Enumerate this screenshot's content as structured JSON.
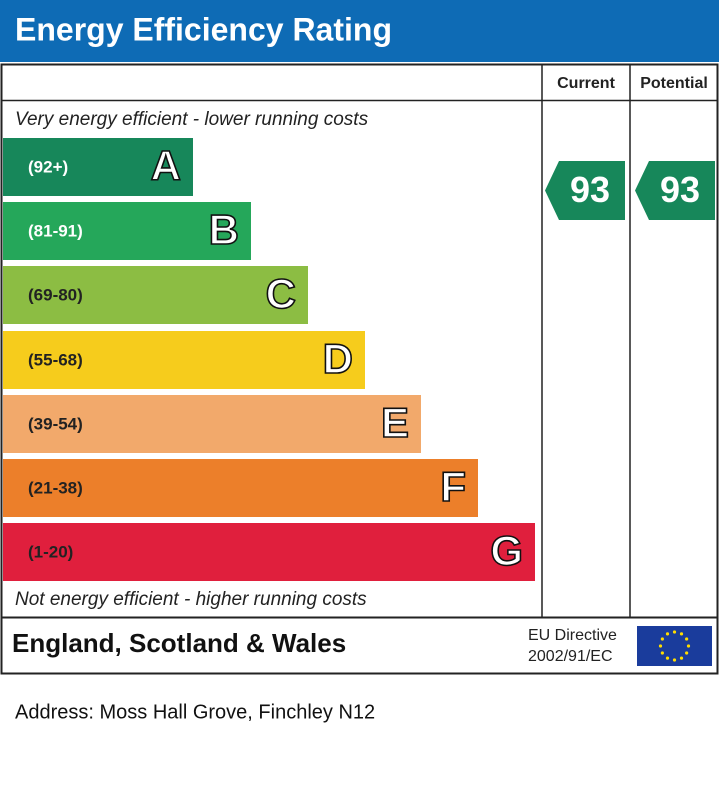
{
  "header": {
    "title": "Energy Efficiency Rating"
  },
  "columns": {
    "current": "Current",
    "potential": "Potential"
  },
  "top_note": "Very energy efficient - lower running costs",
  "bottom_note": "Not energy efficient - higher running costs",
  "bands": [
    {
      "range": "(92+)",
      "letter": "A",
      "color": "#17875a",
      "text_color": "#ffffff"
    },
    {
      "range": "(81-91)",
      "letter": "B",
      "color": "#25a75a",
      "text_color": "#ffffff"
    },
    {
      "range": "(69-80)",
      "letter": "C",
      "color": "#8cbd43",
      "text_color": "#222222"
    },
    {
      "range": "(55-68)",
      "letter": "D",
      "color": "#f6cc1c",
      "text_color": "#222222"
    },
    {
      "range": "(39-54)",
      "letter": "E",
      "color": "#f2a96b",
      "text_color": "#222222"
    },
    {
      "range": "(21-38)",
      "letter": "F",
      "color": "#ec7f2a",
      "text_color": "#222222"
    },
    {
      "range": "(1-20)",
      "letter": "G",
      "color": "#e01f3d",
      "text_color": "#222222"
    }
  ],
  "ratings": {
    "current": 93,
    "potential": 93,
    "color": "#17875a"
  },
  "footer": {
    "region": "England, Scotland & Wales",
    "directive_line1": "EU Directive",
    "directive_line2": "2002/91/EC"
  },
  "address": "Address: Moss Hall Grove, Finchley N12"
}
